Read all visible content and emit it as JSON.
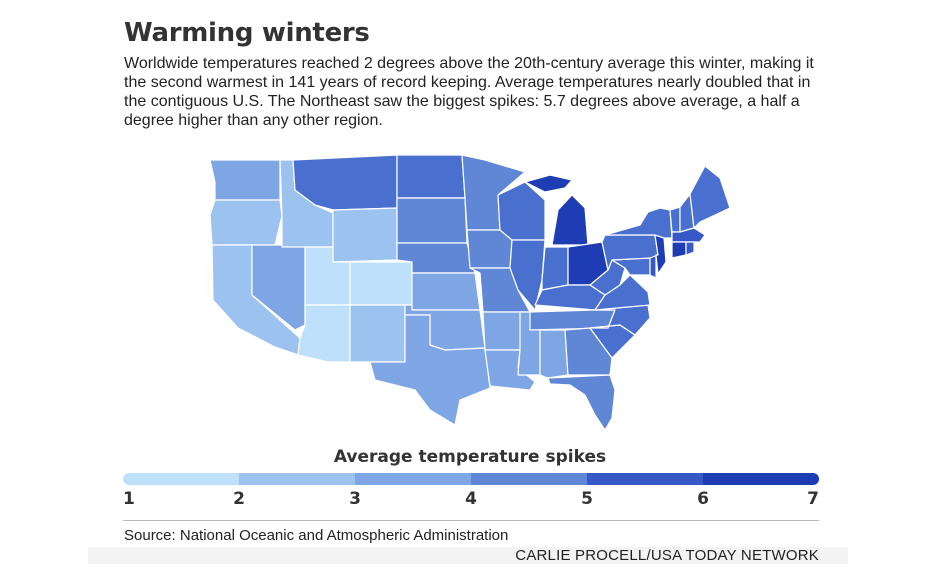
{
  "header": {
    "title": "Warming winters",
    "description": "Worldwide temperatures reached 2 degrees above the 20th-century average this winter, making it the second warmest in 141 years of record keeping. Average temperatures nearly doubled that in the contiguous U.S. The Northeast saw the biggest spikes: 5.7 degrees above average, a half a degree higher than any other region."
  },
  "legend": {
    "title": "Average temperature spikes",
    "ticks": [
      "1",
      "2",
      "3",
      "4",
      "5",
      "6",
      "7"
    ],
    "colors": [
      "#bfe0fb",
      "#9cc2ef",
      "#7ea5e4",
      "#5f87d6",
      "#4a70cf",
      "#3659c7",
      "#1e3cb4"
    ]
  },
  "map_data": {
    "WA": 3,
    "OR": 2,
    "CA": 2,
    "NV": 3,
    "ID": 2,
    "MT": 5,
    "WY": 2,
    "UT": 1,
    "CO": 1,
    "AZ": 1,
    "NM": 2,
    "ND": 5,
    "SD": 4,
    "NE": 4,
    "KS": 3,
    "OK": 3,
    "TX": 3,
    "MN": 4,
    "IA": 4,
    "MO": 4,
    "AR": 3,
    "LA": 3,
    "WI": 5,
    "IL": 5,
    "MS": 3,
    "MI": 7,
    "IN": 5,
    "KY": 5,
    "TN": 4,
    "AL": 3,
    "OH": 7,
    "GA": 4,
    "FL": 4,
    "SC": 5,
    "NC": 5,
    "VA": 5,
    "WV": 5,
    "PA": 5,
    "NY": 5,
    "ME": 5,
    "NH": 5,
    "VT": 5,
    "MA": 6,
    "CT": 7,
    "RI": 6,
    "NJ": 7,
    "DE": 6,
    "MD": 5
  },
  "footer": {
    "source": "Source: National Oceanic and Atmospheric Administration",
    "credit": "CARLIE PROCELL/USA TODAY NETWORK"
  }
}
